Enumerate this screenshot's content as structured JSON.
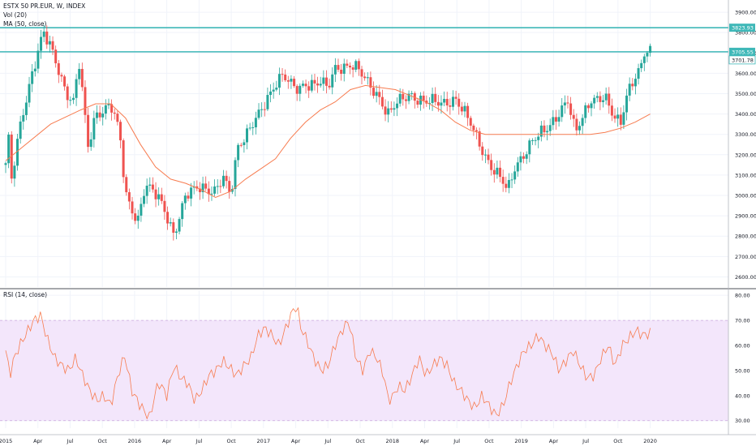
{
  "header": {
    "symbol_line": "ESTX 50 PR.EUR, W, INDEX",
    "vol_line": "Vol (20)",
    "ma_line": "MA (50, close)"
  },
  "rsi_panel": {
    "label": "RSI (14, close)"
  },
  "colors": {
    "up": "#26a69a",
    "down": "#ef5350",
    "ma": "#f77c50",
    "rsi_line": "#f77c50",
    "rsi_band": "#f3e6fb",
    "level_line": "#3fb8b8",
    "grid": "#f0f3fa"
  },
  "chart_data": [
    {
      "type": "candlestick",
      "title": "ESTX 50 PR.EUR, W, INDEX",
      "x_tick_labels": [
        "2015",
        "Apr",
        "Jul",
        "Oct",
        "2016",
        "Apr",
        "Jul",
        "Oct",
        "2017",
        "Apr",
        "Jul",
        "Oct",
        "2018",
        "Apr",
        "Jul",
        "Oct",
        "2019",
        "Apr",
        "Jul",
        "Oct",
        "2020"
      ],
      "ylim": [
        2550,
        3960
      ],
      "y_ticks": [
        2600,
        2700,
        2800,
        2900,
        3000,
        3100,
        3200,
        3300,
        3400,
        3500,
        3600,
        3700,
        3800,
        3900
      ],
      "y_tick_labels": [
        "2600.00",
        "2700.00",
        "2800.00",
        "2900.00",
        "3000.00",
        "3100.00",
        "3200.00",
        "3300.00",
        "3400.00",
        "3500.00",
        "3600.00",
        "3700.00",
        "3800.00",
        "3900.00"
      ],
      "horizontal_levels": [
        {
          "value": 3823.93,
          "label": "3823.93"
        },
        {
          "value": 3705.55,
          "label": "3705.55"
        }
      ],
      "last_price_label": "3701.78",
      "close_anchors": [
        {
          "t": 0.0,
          "v": 3150
        },
        {
          "t": 0.2,
          "v": 3280
        },
        {
          "t": 0.35,
          "v": 3050
        },
        {
          "t": 1.0,
          "v": 3350
        },
        {
          "t": 1.8,
          "v": 3620
        },
        {
          "t": 2.5,
          "v": 3800
        },
        {
          "t": 3.0,
          "v": 3720
        },
        {
          "t": 3.5,
          "v": 3620
        },
        {
          "t": 4.0,
          "v": 3520
        },
        {
          "t": 4.5,
          "v": 3460
        },
        {
          "t": 4.9,
          "v": 3650
        },
        {
          "t": 5.5,
          "v": 3230
        },
        {
          "t": 6.0,
          "v": 3400
        },
        {
          "t": 7.0,
          "v": 3450
        },
        {
          "t": 7.6,
          "v": 3300
        },
        {
          "t": 8.0,
          "v": 3000
        },
        {
          "t": 8.8,
          "v": 2880
        },
        {
          "t": 9.3,
          "v": 3050
        },
        {
          "t": 10.0,
          "v": 3000
        },
        {
          "t": 10.5,
          "v": 2950
        },
        {
          "t": 11.2,
          "v": 2820
        },
        {
          "t": 11.5,
          "v": 2870
        },
        {
          "t": 12.0,
          "v": 2990
        },
        {
          "t": 13.0,
          "v": 3050
        },
        {
          "t": 14.0,
          "v": 3020
        },
        {
          "t": 14.5,
          "v": 3080
        },
        {
          "t": 15.0,
          "v": 3000
        },
        {
          "t": 15.5,
          "v": 3250
        },
        {
          "t": 16.0,
          "v": 3300
        },
        {
          "t": 17.0,
          "v": 3400
        },
        {
          "t": 17.5,
          "v": 3480
        },
        {
          "t": 18.0,
          "v": 3560
        },
        {
          "t": 18.5,
          "v": 3600
        },
        {
          "t": 19.0,
          "v": 3540
        },
        {
          "t": 19.5,
          "v": 3510
        },
        {
          "t": 20.0,
          "v": 3550
        },
        {
          "t": 21.0,
          "v": 3560
        },
        {
          "t": 21.5,
          "v": 3520
        },
        {
          "t": 22.0,
          "v": 3620
        },
        {
          "t": 23.0,
          "v": 3650
        },
        {
          "t": 23.5,
          "v": 3620
        },
        {
          "t": 24.0,
          "v": 3560
        },
        {
          "t": 25.0,
          "v": 3480
        },
        {
          "t": 25.5,
          "v": 3400
        },
        {
          "t": 26.0,
          "v": 3440
        },
        {
          "t": 27.0,
          "v": 3500
        },
        {
          "t": 28.0,
          "v": 3460
        },
        {
          "t": 29.0,
          "v": 3450
        },
        {
          "t": 30.0,
          "v": 3480
        },
        {
          "t": 31.0,
          "v": 3350
        },
        {
          "t": 32.0,
          "v": 3200
        },
        {
          "t": 32.5,
          "v": 3130
        },
        {
          "t": 33.0,
          "v": 3080
        },
        {
          "t": 33.5,
          "v": 3020
        },
        {
          "t": 34.0,
          "v": 3150
        },
        {
          "t": 35.0,
          "v": 3250
        },
        {
          "t": 36.0,
          "v": 3320
        },
        {
          "t": 37.0,
          "v": 3420
        },
        {
          "t": 37.5,
          "v": 3460
        },
        {
          "t": 38.0,
          "v": 3300
        },
        {
          "t": 39.0,
          "v": 3480
        },
        {
          "t": 40.0,
          "v": 3470
        },
        {
          "t": 40.5,
          "v": 3390
        },
        {
          "t": 41.0,
          "v": 3360
        },
        {
          "t": 41.5,
          "v": 3520
        },
        {
          "t": 42.0,
          "v": 3580
        },
        {
          "t": 42.3,
          "v": 3600
        },
        {
          "t": 42.65,
          "v": 3700
        },
        {
          "t": 43.0,
          "v": 3702
        }
      ],
      "ma_anchors": [
        {
          "t": 0.0,
          "v": 3170
        },
        {
          "t": 3.0,
          "v": 3350
        },
        {
          "t": 5.0,
          "v": 3420
        },
        {
          "t": 6.0,
          "v": 3450
        },
        {
          "t": 7.0,
          "v": 3450
        },
        {
          "t": 8.0,
          "v": 3380
        },
        {
          "t": 9.0,
          "v": 3250
        },
        {
          "t": 10.0,
          "v": 3140
        },
        {
          "t": 11.0,
          "v": 3080
        },
        {
          "t": 12.0,
          "v": 3060
        },
        {
          "t": 13.0,
          "v": 3030
        },
        {
          "t": 14.0,
          "v": 2990
        },
        {
          "t": 15.0,
          "v": 3020
        },
        {
          "t": 16.0,
          "v": 3080
        },
        {
          "t": 17.0,
          "v": 3130
        },
        {
          "t": 18.0,
          "v": 3180
        },
        {
          "t": 19.0,
          "v": 3280
        },
        {
          "t": 20.0,
          "v": 3360
        },
        {
          "t": 21.0,
          "v": 3420
        },
        {
          "t": 22.0,
          "v": 3460
        },
        {
          "t": 23.0,
          "v": 3520
        },
        {
          "t": 24.0,
          "v": 3540
        },
        {
          "t": 25.0,
          "v": 3530
        },
        {
          "t": 26.0,
          "v": 3520
        },
        {
          "t": 27.0,
          "v": 3490
        },
        {
          "t": 28.0,
          "v": 3460
        },
        {
          "t": 29.0,
          "v": 3420
        },
        {
          "t": 30.0,
          "v": 3360
        },
        {
          "t": 31.0,
          "v": 3320
        },
        {
          "t": 32.0,
          "v": 3300
        },
        {
          "t": 33.0,
          "v": 3300
        },
        {
          "t": 34.0,
          "v": 3300
        },
        {
          "t": 36.0,
          "v": 3300
        },
        {
          "t": 38.0,
          "v": 3300
        },
        {
          "t": 39.0,
          "v": 3300
        },
        {
          "t": 40.0,
          "v": 3310
        },
        {
          "t": 41.0,
          "v": 3330
        },
        {
          "t": 42.0,
          "v": 3360
        },
        {
          "t": 43.0,
          "v": 3400
        }
      ]
    },
    {
      "type": "line",
      "title": "RSI (14, close)",
      "ylim": [
        27,
        82
      ],
      "y_ticks": [
        30,
        40,
        50,
        60,
        70,
        80
      ],
      "y_tick_labels": [
        "30.00",
        "40.00",
        "50.00",
        "60.00",
        "70.00",
        "80.00"
      ],
      "band": [
        30,
        70
      ],
      "anchors": [
        {
          "t": 0.0,
          "v": 58
        },
        {
          "t": 0.3,
          "v": 48
        },
        {
          "t": 0.6,
          "v": 55
        },
        {
          "t": 1.0,
          "v": 60
        },
        {
          "t": 1.5,
          "v": 65
        },
        {
          "t": 2.0,
          "v": 70
        },
        {
          "t": 2.5,
          "v": 72
        },
        {
          "t": 3.0,
          "v": 62
        },
        {
          "t": 3.5,
          "v": 55
        },
        {
          "t": 4.0,
          "v": 52
        },
        {
          "t": 4.5,
          "v": 50
        },
        {
          "t": 5.0,
          "v": 55
        },
        {
          "t": 5.5,
          "v": 48
        },
        {
          "t": 6.0,
          "v": 42
        },
        {
          "t": 6.5,
          "v": 38
        },
        {
          "t": 7.0,
          "v": 40
        },
        {
          "t": 7.5,
          "v": 36
        },
        {
          "t": 8.0,
          "v": 48
        },
        {
          "t": 8.5,
          "v": 56
        },
        {
          "t": 9.0,
          "v": 42
        },
        {
          "t": 9.5,
          "v": 37
        },
        {
          "t": 10.0,
          "v": 33
        },
        {
          "t": 10.3,
          "v": 31
        },
        {
          "t": 10.7,
          "v": 42
        },
        {
          "t": 11.0,
          "v": 45
        },
        {
          "t": 11.5,
          "v": 40
        },
        {
          "t": 12.0,
          "v": 52
        },
        {
          "t": 12.5,
          "v": 47
        },
        {
          "t": 13.0,
          "v": 45
        },
        {
          "t": 13.5,
          "v": 38
        },
        {
          "t": 14.0,
          "v": 42
        },
        {
          "t": 14.5,
          "v": 48
        },
        {
          "t": 15.0,
          "v": 50
        },
        {
          "t": 15.5,
          "v": 54
        },
        {
          "t": 16.0,
          "v": 51
        },
        {
          "t": 16.5,
          "v": 48
        },
        {
          "t": 17.0,
          "v": 52
        },
        {
          "t": 17.5,
          "v": 55
        },
        {
          "t": 18.0,
          "v": 64
        },
        {
          "t": 18.5,
          "v": 67
        },
        {
          "t": 19.0,
          "v": 64
        },
        {
          "t": 19.5,
          "v": 60
        },
        {
          "t": 20.0,
          "v": 67
        },
        {
          "t": 20.5,
          "v": 74
        },
        {
          "t": 20.8,
          "v": 76
        },
        {
          "t": 21.0,
          "v": 68
        },
        {
          "t": 21.5,
          "v": 62
        },
        {
          "t": 22.0,
          "v": 55
        },
        {
          "t": 22.5,
          "v": 50
        },
        {
          "t": 23.0,
          "v": 52
        },
        {
          "t": 23.5,
          "v": 60
        },
        {
          "t": 24.0,
          "v": 66
        },
        {
          "t": 24.5,
          "v": 70
        },
        {
          "t": 25.0,
          "v": 55
        },
        {
          "t": 25.5,
          "v": 50
        },
        {
          "t": 26.0,
          "v": 58
        },
        {
          "t": 26.5,
          "v": 55
        },
        {
          "t": 27.0,
          "v": 48
        },
        {
          "t": 27.3,
          "v": 38
        },
        {
          "t": 27.7,
          "v": 40
        },
        {
          "t": 28.0,
          "v": 44
        },
        {
          "t": 28.5,
          "v": 42
        },
        {
          "t": 29.0,
          "v": 48
        },
        {
          "t": 29.5,
          "v": 55
        },
        {
          "t": 30.0,
          "v": 48
        },
        {
          "t": 30.5,
          "v": 52
        },
        {
          "t": 31.0,
          "v": 55
        },
        {
          "t": 31.5,
          "v": 52
        },
        {
          "t": 32.0,
          "v": 45
        },
        {
          "t": 32.5,
          "v": 42
        },
        {
          "t": 33.0,
          "v": 38
        },
        {
          "t": 33.5,
          "v": 35
        },
        {
          "t": 34.0,
          "v": 40
        },
        {
          "t": 34.5,
          "v": 36
        },
        {
          "t": 35.0,
          "v": 32
        },
        {
          "t": 35.5,
          "v": 36
        },
        {
          "t": 36.0,
          "v": 45
        },
        {
          "t": 36.5,
          "v": 52
        },
        {
          "t": 37.0,
          "v": 58
        },
        {
          "t": 37.5,
          "v": 60
        },
        {
          "t": 38.0,
          "v": 64
        },
        {
          "t": 38.5,
          "v": 60
        },
        {
          "t": 39.0,
          "v": 57
        },
        {
          "t": 39.5,
          "v": 50
        },
        {
          "t": 40.0,
          "v": 54
        },
        {
          "t": 40.5,
          "v": 58
        },
        {
          "t": 41.0,
          "v": 52
        },
        {
          "t": 41.5,
          "v": 47
        },
        {
          "t": 42.0,
          "v": 48
        },
        {
          "t": 42.5,
          "v": 55
        },
        {
          "t": 43.0,
          "v": 60
        },
        {
          "t": 43.5,
          "v": 52
        },
        {
          "t": 44.0,
          "v": 60
        },
        {
          "t": 44.5,
          "v": 63
        },
        {
          "t": 45.0,
          "v": 66
        },
        {
          "t": 45.5,
          "v": 64
        },
        {
          "t": 46.0,
          "v": 65
        }
      ]
    }
  ]
}
